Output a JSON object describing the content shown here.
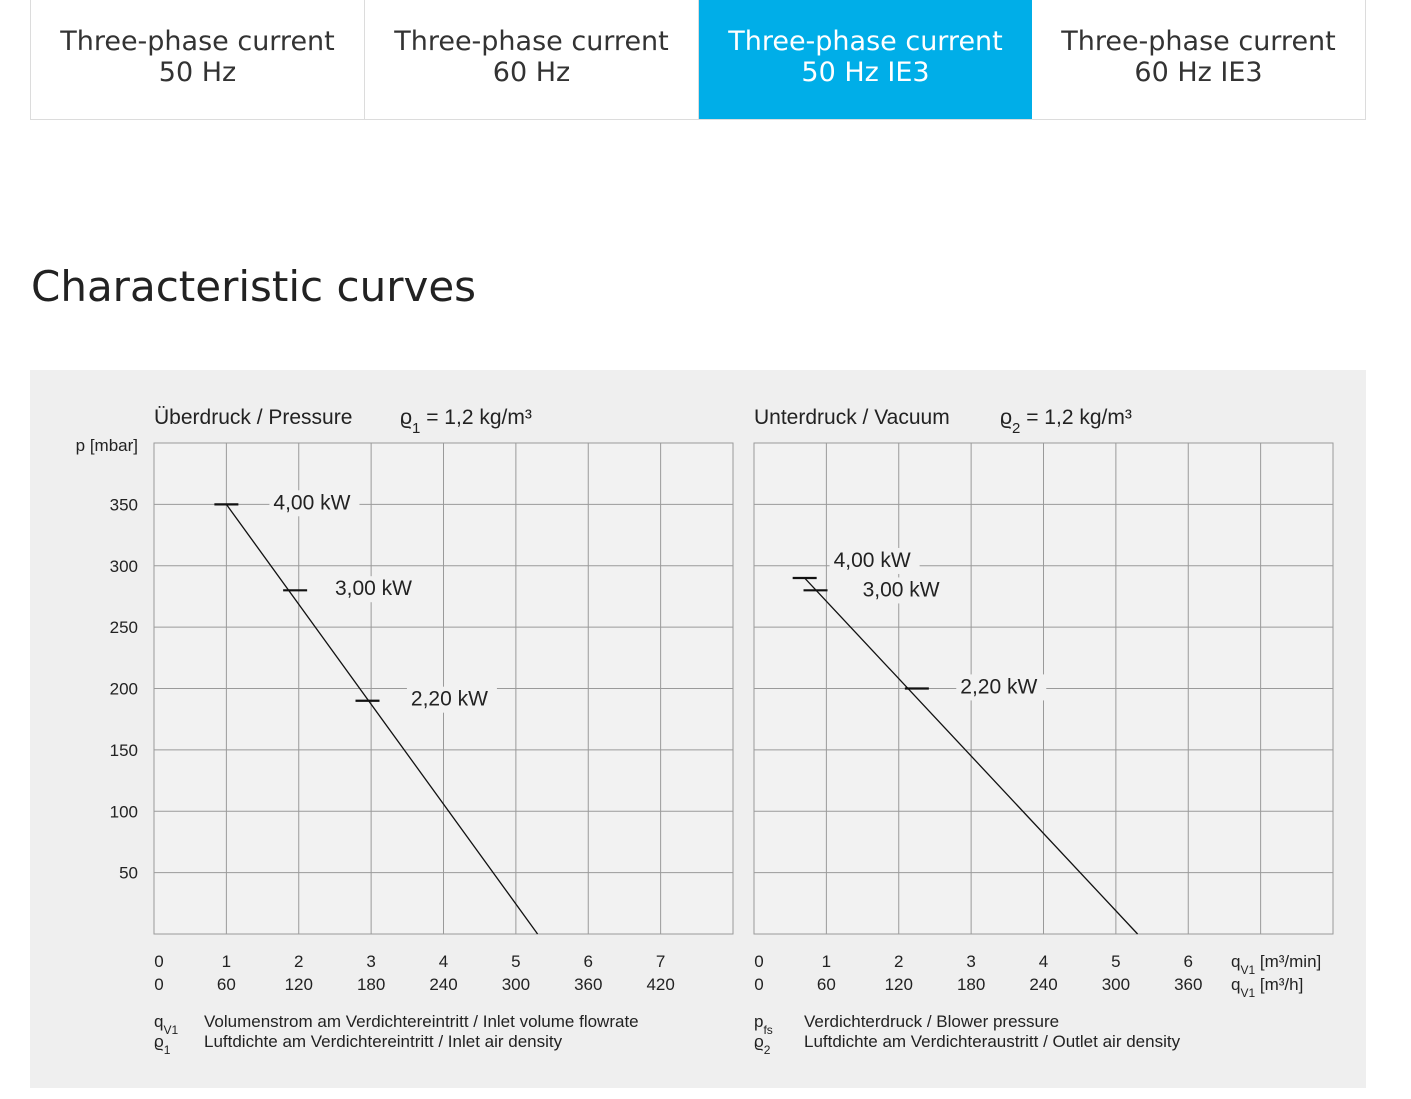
{
  "tabs": [
    {
      "line1": "Three-phase current",
      "line2": "50 Hz",
      "active": false
    },
    {
      "line1": "Three-phase current",
      "line2": "60 Hz",
      "active": false
    },
    {
      "line1": "Three-phase current",
      "line2": "50 Hz IE3",
      "active": true
    },
    {
      "line1": "Three-phase current",
      "line2": "60 Hz IE3",
      "active": false
    }
  ],
  "heading": "Characteristic curves",
  "chart_data": [
    {
      "type": "line",
      "title": "Überdruck / Pressure",
      "density_label": "ϱ",
      "density_sub": "1",
      "density_value": " = 1,2 kg/m³",
      "ylabel": "p [mbar]",
      "yticks": [
        50,
        100,
        150,
        200,
        250,
        300,
        350
      ],
      "ylim": [
        0,
        400
      ],
      "xlim": [
        0,
        8
      ],
      "xticks_min": [
        "0",
        "1",
        "2",
        "3",
        "4",
        "5",
        "6",
        "7"
      ],
      "xticks_h": [
        "0",
        "60",
        "120",
        "180",
        "240",
        "300",
        "360",
        "420"
      ],
      "grid": true,
      "line": {
        "x": [
          1,
          5.3
        ],
        "y": [
          350,
          0
        ]
      },
      "markers": [
        {
          "x": 1.0,
          "y": 350,
          "label": "4,00 kW",
          "lx": 1.65,
          "ly": 346
        },
        {
          "x": 1.95,
          "y": 280,
          "label": "3,00 kW",
          "lx": 2.5,
          "ly": 276
        },
        {
          "x": 2.95,
          "y": 190,
          "label": "2,20 kW",
          "lx": 3.55,
          "ly": 186
        }
      ],
      "legend": [
        {
          "sym": "q",
          "sub": "V1",
          "text": "Volumenstrom am Verdichtereintritt / Inlet volume flowrate"
        },
        {
          "sym": "ϱ",
          "sub": "1",
          "text": "Luftdichte am Verdichtereintritt / Inlet air density"
        }
      ]
    },
    {
      "type": "line",
      "title": "Unterdruck / Vacuum",
      "density_label": "ϱ",
      "density_sub": "2",
      "density_value": " = 1,2 kg/m³",
      "ylabel": "",
      "ylim": [
        0,
        400
      ],
      "xlim": [
        0,
        8
      ],
      "xticks_min": [
        "0",
        "1",
        "2",
        "3",
        "4",
        "5",
        "6"
      ],
      "xticks_h": [
        "0",
        "60",
        "120",
        "180",
        "240",
        "300",
        "360"
      ],
      "x_unit_min": {
        "sym": "q",
        "sub": "V1",
        "unit": " [m³/min]"
      },
      "x_unit_h": {
        "sym": "q",
        "sub": "V1",
        "unit": " [m³/h]"
      },
      "grid": true,
      "line": {
        "x": [
          0.7,
          5.3
        ],
        "y": [
          290,
          0
        ]
      },
      "markers": [
        {
          "x": 0.7,
          "y": 290,
          "label": "4,00 kW",
          "lx": 1.1,
          "ly": 299
        },
        {
          "x": 0.85,
          "y": 280,
          "label": "3,00 kW",
          "lx": 1.5,
          "ly": 275
        },
        {
          "x": 2.25,
          "y": 200,
          "label": "2,20 kW",
          "lx": 2.85,
          "ly": 196
        }
      ],
      "legend": [
        {
          "sym": "p",
          "sub": "fs",
          "text": "Verdichterdruck / Blower pressure"
        },
        {
          "sym": "ϱ",
          "sub": "2",
          "text": "Luftdichte am Verdichteraustritt / Outlet air density"
        }
      ]
    }
  ]
}
